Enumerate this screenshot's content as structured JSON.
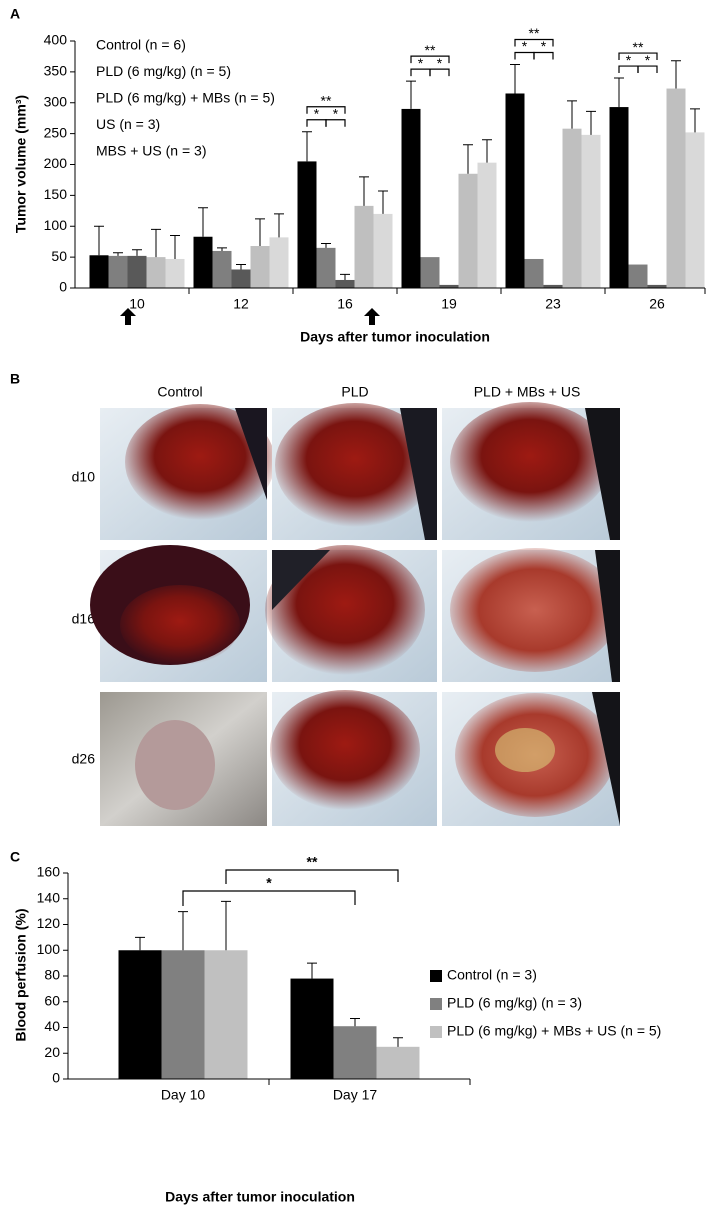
{
  "chart_data": [
    {
      "type": "bar",
      "panel": "A",
      "y_label": "Tumor volume (mm³)",
      "x_label": "Days after tumor inoculation",
      "categories": [
        "10",
        "12",
        "16",
        "19",
        "23",
        "26"
      ],
      "series": [
        {
          "name": "Control (n = 6)",
          "color": "#000000",
          "values": [
            53,
            83,
            205,
            290,
            315,
            293
          ],
          "errors": [
            47,
            47,
            48,
            45,
            47,
            47
          ]
        },
        {
          "name": "PLD (6 mg/kg) (n = 5)",
          "color": "#7f7f7f",
          "values": [
            52,
            60,
            65,
            50,
            47,
            38
          ],
          "errors": [
            5,
            5,
            7,
            null,
            null,
            null
          ]
        },
        {
          "name": "PLD (6 mg/kg) + MBs (n = 5)",
          "color": "#595959",
          "values": [
            52,
            30,
            13,
            5,
            5,
            5
          ],
          "errors": [
            10,
            8,
            9,
            null,
            null,
            null
          ]
        },
        {
          "name": "US (n = 3)",
          "color": "#bfbfbf",
          "values": [
            50,
            68,
            133,
            185,
            258,
            323
          ],
          "errors": [
            45,
            44,
            47,
            47,
            45,
            45
          ]
        },
        {
          "name": "MBS + US (n = 3)",
          "color": "#d9d9d9",
          "values": [
            47,
            82,
            120,
            203,
            248,
            252
          ],
          "errors": [
            38,
            38,
            37,
            37,
            38,
            38
          ]
        }
      ],
      "ylim": [
        0,
        400
      ],
      "yticks": [
        0,
        50,
        100,
        150,
        200,
        250,
        300,
        350,
        400
      ],
      "legend": "top-left",
      "legend_swatches": false,
      "significance": [
        "*",
        "**"
      ]
    },
    {
      "type": "bar",
      "panel": "C",
      "y_label": "Blood perfusion (%)",
      "x_label": "Days after tumor inoculation",
      "categories": [
        "Day 10",
        "Day 17"
      ],
      "series": [
        {
          "name": "Control (n = 3)",
          "color": "#000000",
          "values": [
            100,
            78
          ],
          "errors": [
            10,
            12
          ]
        },
        {
          "name": "PLD (6 mg/kg) (n = 3)",
          "color": "#808080",
          "values": [
            100,
            41
          ],
          "errors": [
            30,
            6
          ]
        },
        {
          "name": "PLD (6 mg/kg) + MBs + US (n = 5)",
          "color": "#c0c0c0",
          "values": [
            100,
            25
          ],
          "errors": [
            38,
            7
          ]
        }
      ],
      "ylim": [
        0,
        160
      ],
      "yticks": [
        0,
        20,
        40,
        60,
        80,
        100,
        120,
        140,
        160
      ],
      "legend": "right",
      "legend_swatches": true,
      "significance": [
        "*",
        "**"
      ]
    }
  ],
  "panel_b": {
    "panel": "B",
    "columns": [
      "Control",
      "PLD",
      "PLD + MBs + US"
    ],
    "rows": [
      "d10",
      "d16",
      "d26"
    ]
  }
}
